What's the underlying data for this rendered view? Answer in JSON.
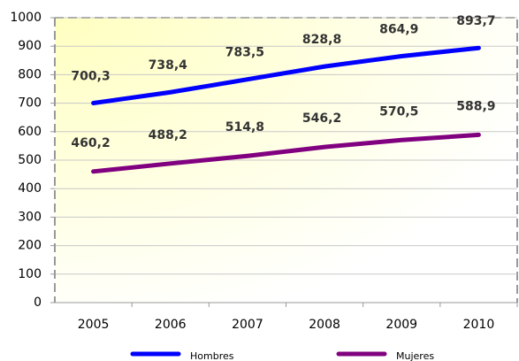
{
  "chart_data": {
    "type": "line",
    "categories": [
      "2005",
      "2006",
      "2007",
      "2008",
      "2009",
      "2010"
    ],
    "series": [
      {
        "name": "Hombres",
        "color": "#0000ff",
        "values": [
          700.3,
          738.4,
          783.5,
          828.8,
          864.9,
          893.7
        ],
        "value_labels": [
          "700,3",
          "738,4",
          "783,5",
          "828,8",
          "864,9",
          "893,7"
        ]
      },
      {
        "name": "Mujeres",
        "color": "#800080",
        "values": [
          460.2,
          488.2,
          514.8,
          546.2,
          570.5,
          588.9
        ],
        "value_labels": [
          "460,2",
          "488,2",
          "514,8",
          "546,2",
          "570,5",
          "588,9"
        ]
      }
    ],
    "ylim": [
      0,
      1000
    ],
    "yticks": [
      0,
      100,
      200,
      300,
      400,
      500,
      600,
      700,
      800,
      900,
      1000
    ],
    "grid": true,
    "legend": "bottom"
  }
}
